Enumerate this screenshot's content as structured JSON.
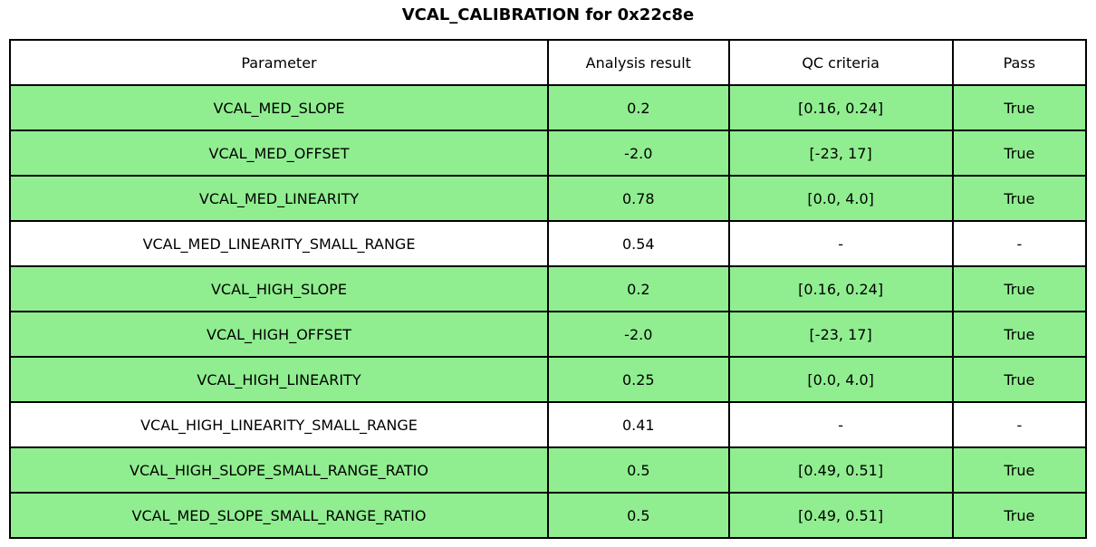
{
  "title": "VCAL_CALIBRATION for 0x22c8e",
  "table": {
    "columns": {
      "parameter": "Parameter",
      "result": "Analysis result",
      "criteria": "QC criteria",
      "pass": "Pass"
    },
    "rows": [
      {
        "parameter": "VCAL_MED_SLOPE",
        "result": "0.2",
        "criteria": "[0.16, 0.24]",
        "pass": "True",
        "status": "pass"
      },
      {
        "parameter": "VCAL_MED_OFFSET",
        "result": "-2.0",
        "criteria": "[-23, 17]",
        "pass": "True",
        "status": "pass"
      },
      {
        "parameter": "VCAL_MED_LINEARITY",
        "result": "0.78",
        "criteria": "[0.0, 4.0]",
        "pass": "True",
        "status": "pass"
      },
      {
        "parameter": "VCAL_MED_LINEARITY_SMALL_RANGE",
        "result": "0.54",
        "criteria": "-",
        "pass": "-",
        "status": "neutral"
      },
      {
        "parameter": "VCAL_HIGH_SLOPE",
        "result": "0.2",
        "criteria": "[0.16, 0.24]",
        "pass": "True",
        "status": "pass"
      },
      {
        "parameter": "VCAL_HIGH_OFFSET",
        "result": "-2.0",
        "criteria": "[-23, 17]",
        "pass": "True",
        "status": "pass"
      },
      {
        "parameter": "VCAL_HIGH_LINEARITY",
        "result": "0.25",
        "criteria": "[0.0, 4.0]",
        "pass": "True",
        "status": "pass"
      },
      {
        "parameter": "VCAL_HIGH_LINEARITY_SMALL_RANGE",
        "result": "0.41",
        "criteria": "-",
        "pass": "-",
        "status": "neutral"
      },
      {
        "parameter": "VCAL_HIGH_SLOPE_SMALL_RANGE_RATIO",
        "result": "0.5",
        "criteria": "[0.49, 0.51]",
        "pass": "True",
        "status": "pass"
      },
      {
        "parameter": "VCAL_MED_SLOPE_SMALL_RANGE_RATIO",
        "result": "0.5",
        "criteria": "[0.49, 0.51]",
        "pass": "True",
        "status": "pass"
      }
    ]
  },
  "colors": {
    "pass_row_bg": "#90ee90",
    "neutral_row_bg": "#ffffff",
    "border": "#000000",
    "page_bg": "#ffffff",
    "text": "#000000"
  },
  "chart_data": {
    "type": "table",
    "title": "VCAL_CALIBRATION for 0x22c8e",
    "columns": [
      "Parameter",
      "Analysis result",
      "QC criteria",
      "Pass"
    ],
    "rows": [
      [
        "VCAL_MED_SLOPE",
        "0.2",
        "[0.16, 0.24]",
        "True"
      ],
      [
        "VCAL_MED_OFFSET",
        "-2.0",
        "[-23, 17]",
        "True"
      ],
      [
        "VCAL_MED_LINEARITY",
        "0.78",
        "[0.0, 4.0]",
        "True"
      ],
      [
        "VCAL_MED_LINEARITY_SMALL_RANGE",
        "0.54",
        "-",
        "-"
      ],
      [
        "VCAL_HIGH_SLOPE",
        "0.2",
        "[0.16, 0.24]",
        "True"
      ],
      [
        "VCAL_HIGH_OFFSET",
        "-2.0",
        "[-23, 17]",
        "True"
      ],
      [
        "VCAL_HIGH_LINEARITY",
        "0.25",
        "[0.0, 4.0]",
        "True"
      ],
      [
        "VCAL_HIGH_LINEARITY_SMALL_RANGE",
        "0.41",
        "-",
        "-"
      ],
      [
        "VCAL_HIGH_SLOPE_SMALL_RANGE_RATIO",
        "0.5",
        "[0.49, 0.51]",
        "True"
      ],
      [
        "VCAL_MED_SLOPE_SMALL_RANGE_RATIO",
        "0.5",
        "[0.49, 0.51]",
        "True"
      ]
    ],
    "row_highlight": [
      "pass",
      "pass",
      "pass",
      "neutral",
      "pass",
      "pass",
      "pass",
      "neutral",
      "pass",
      "pass"
    ],
    "layout_hints": {
      "header_bg": "white",
      "pass_rows_bg": "lightgreen",
      "grid": "on",
      "cell_text_align": "center"
    }
  }
}
